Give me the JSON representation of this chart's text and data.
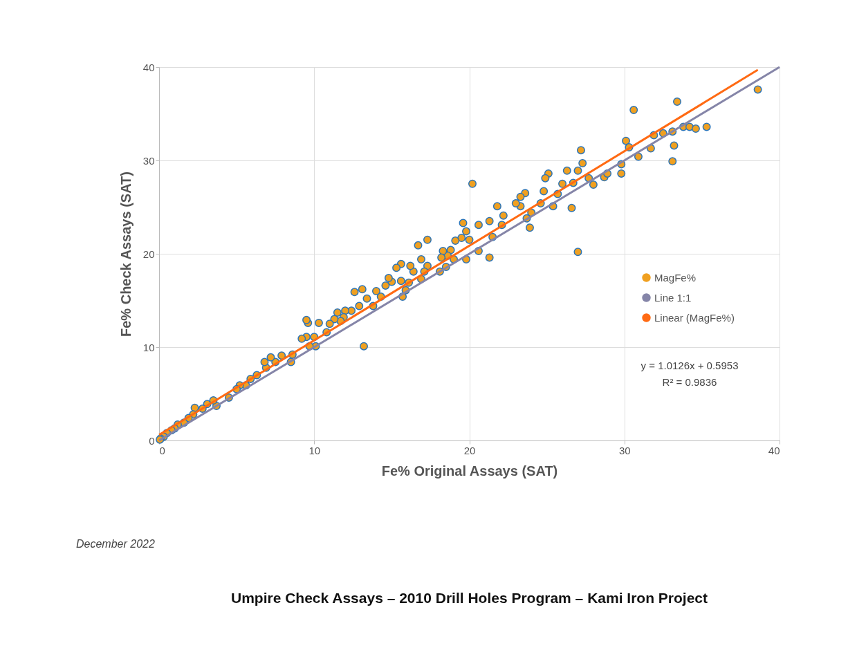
{
  "chart_data": {
    "type": "scatter",
    "title": "Umpire Check Assays – 2010 Drill Holes Program – Kami Iron Project",
    "xlabel": "Fe% Original Assays (SAT)",
    "ylabel": "Fe% Check Assays (SAT)",
    "xlim": [
      0,
      40
    ],
    "ylim": [
      0,
      40
    ],
    "xticks": [
      0,
      10,
      20,
      30,
      40
    ],
    "yticks": [
      0,
      10,
      20,
      30,
      40
    ],
    "grid": true,
    "legend": "right",
    "annotations": [
      "y = 1.0126x + 0.5953",
      "R² = 0.9836",
      "December 2022"
    ],
    "series": [
      {
        "name": "MagFe%",
        "marker": "circle",
        "color": "#f0a020",
        "x": [
          38.6,
          33.4,
          30.6,
          30.1,
          30.3,
          31.9,
          32.5,
          33.1,
          33.8,
          34.2,
          34.6,
          35.3,
          33.2,
          33.1,
          31.7,
          30.9,
          29.8,
          29.8,
          28.7,
          28.9,
          28.0,
          27.7,
          27.2,
          27.3,
          27.0,
          26.7,
          26.6,
          27.0,
          26.3,
          26.0,
          25.7,
          25.4,
          25.1,
          24.9,
          24.8,
          24.6,
          24.0,
          23.9,
          23.7,
          23.6,
          23.3,
          23.3,
          23.0,
          22.2,
          22.1,
          21.8,
          21.5,
          21.3,
          21.3,
          20.6,
          20.6,
          20.2,
          20.0,
          19.8,
          19.8,
          19.6,
          19.5,
          19.1,
          19.0,
          18.8,
          18.6,
          18.5,
          18.3,
          18.2,
          18.1,
          17.3,
          17.3,
          17.1,
          16.9,
          16.9,
          16.7,
          16.4,
          16.2,
          16.1,
          15.9,
          15.7,
          15.6,
          15.6,
          15.3,
          15.0,
          14.8,
          14.6,
          14.3,
          14.0,
          13.8,
          13.4,
          13.1,
          12.6,
          13.2,
          12.9,
          12.4,
          12.0,
          11.9,
          11.7,
          11.5,
          11.3,
          11.0,
          10.8,
          10.3,
          10.0,
          9.6,
          9.5,
          9.5,
          9.2,
          10.1,
          9.7,
          8.6,
          8.5,
          7.9,
          7.5,
          7.2,
          6.9,
          6.8,
          6.3,
          5.9,
          5.6,
          5.2,
          5.0,
          4.5,
          3.7,
          3.5,
          3.1,
          2.8,
          2.3,
          2.2,
          1.9,
          1.6,
          1.2,
          1.0,
          0.8,
          0.5,
          0.3,
          0.1,
          0.05
        ],
        "values": [
          37.6,
          36.3,
          35.4,
          32.1,
          31.4,
          32.7,
          32.9,
          33.1,
          33.6,
          33.6,
          33.4,
          33.6,
          31.6,
          29.9,
          31.3,
          30.4,
          28.6,
          29.6,
          28.2,
          28.6,
          27.4,
          28.1,
          31.1,
          29.7,
          28.9,
          27.6,
          24.9,
          20.2,
          28.9,
          27.5,
          26.4,
          25.1,
          28.6,
          28.1,
          26.7,
          25.4,
          24.4,
          22.8,
          23.8,
          26.5,
          26.1,
          25.1,
          25.4,
          24.1,
          23.1,
          25.1,
          21.8,
          19.6,
          23.5,
          23.1,
          20.3,
          27.5,
          21.5,
          22.4,
          19.4,
          23.3,
          21.7,
          21.4,
          19.4,
          20.4,
          19.8,
          18.6,
          20.3,
          19.6,
          18.1,
          18.7,
          21.5,
          18.1,
          17.3,
          19.4,
          20.9,
          18.1,
          18.7,
          16.9,
          16.1,
          15.4,
          17.1,
          18.9,
          18.5,
          17.0,
          17.4,
          16.6,
          15.4,
          16.0,
          14.4,
          15.2,
          16.2,
          15.9,
          10.1,
          14.4,
          13.9,
          13.9,
          13.2,
          12.8,
          13.7,
          13.0,
          12.5,
          11.6,
          12.6,
          11.1,
          12.6,
          12.9,
          11.1,
          10.9,
          10.1,
          10.1,
          9.2,
          8.4,
          9.1,
          8.4,
          8.9,
          7.8,
          8.4,
          7.0,
          6.6,
          5.9,
          5.9,
          5.5,
          4.6,
          3.7,
          4.3,
          3.9,
          3.4,
          3.5,
          2.8,
          2.4,
          1.9,
          1.7,
          1.3,
          1.1,
          0.8,
          0.4,
          0.2,
          0.1
        ]
      },
      {
        "name": "Line 1:1",
        "type": "line",
        "marker": "none",
        "color": "#8585a8",
        "x": [
          0,
          40
        ],
        "values": [
          0,
          40
        ]
      },
      {
        "name": "Linear (MagFe%)",
        "type": "line",
        "marker": "none",
        "color": "#ff6a13",
        "x": [
          0,
          38.6
        ],
        "values": [
          0.6,
          39.7
        ]
      }
    ]
  }
}
